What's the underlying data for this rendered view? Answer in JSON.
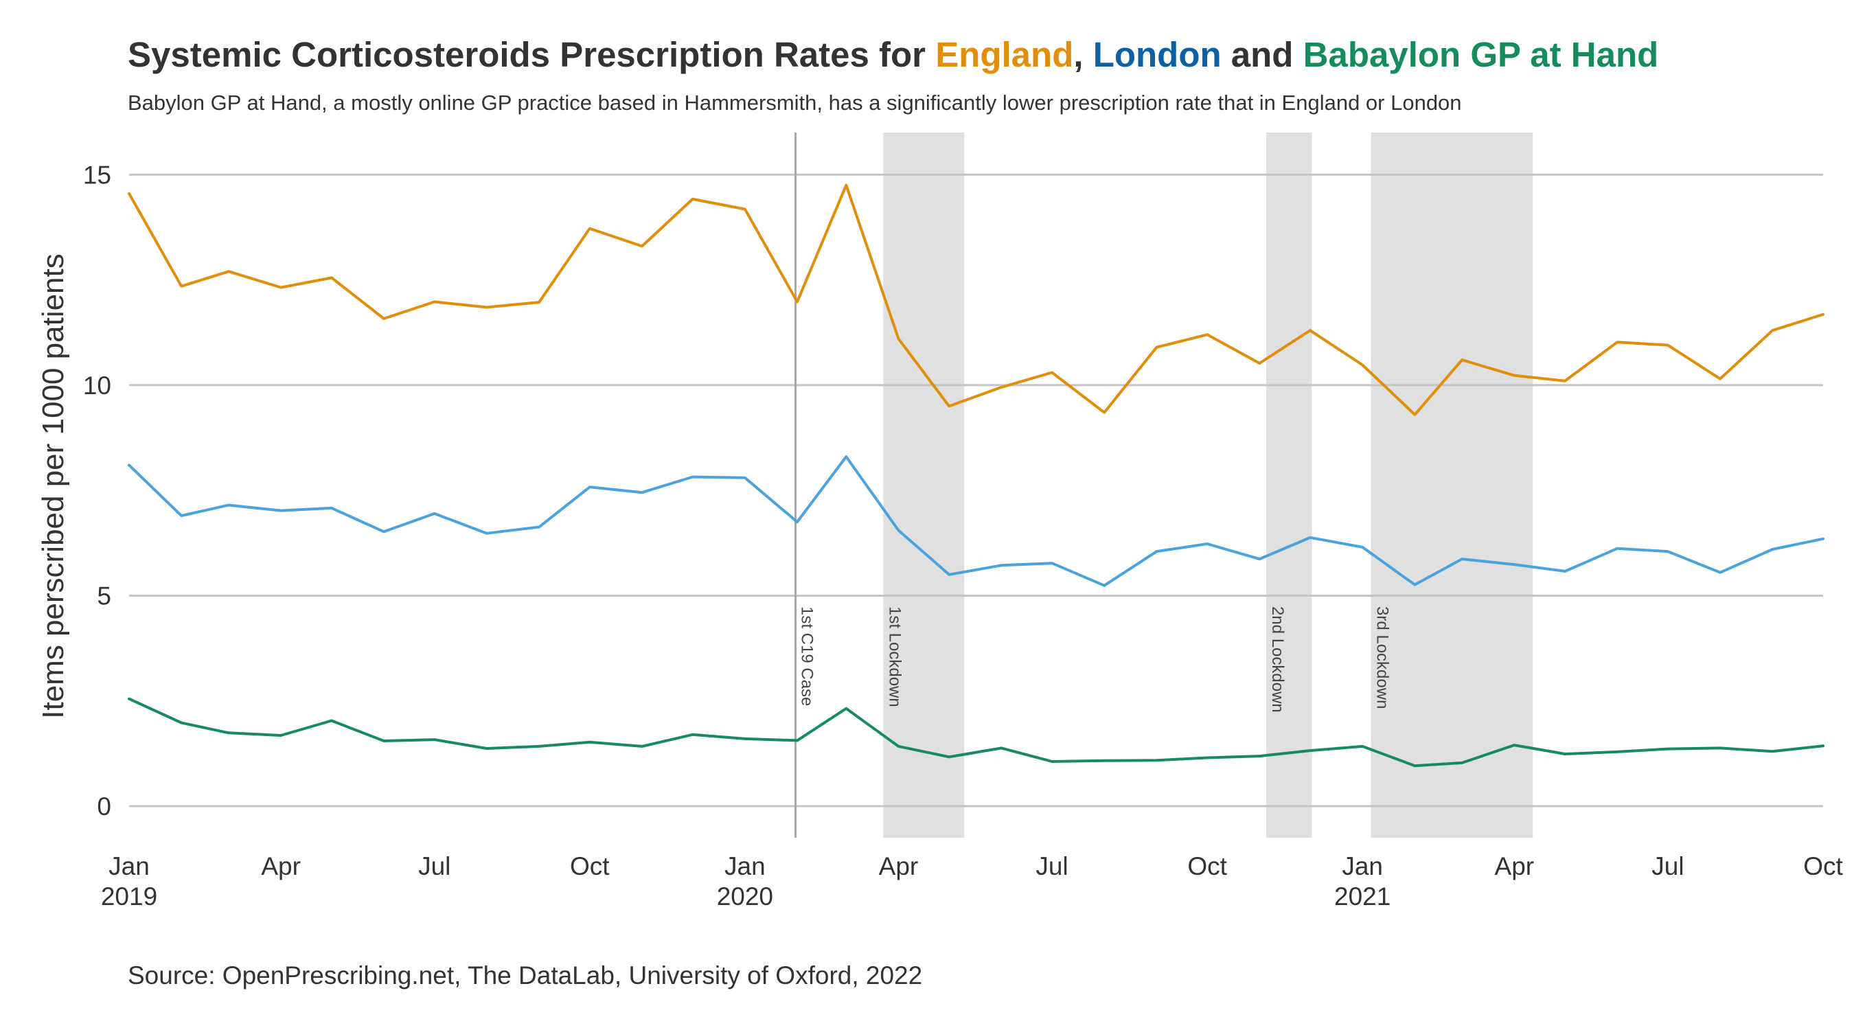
{
  "title": {
    "prefix": "Systemic Corticosteroids Prescription Rates for ",
    "england": "England",
    "comma": ", ",
    "london": "London",
    "and": " and ",
    "babylon": "Babaylon GP at Hand"
  },
  "subtitle": "Babylon GP at Hand, a mostly online GP practice based in Hammersmith, has a significantly lower prescription rate that in England or London",
  "source": "Source: OpenPrescribing.net, The DataLab, University of Oxford, 2022",
  "colors": {
    "england": "#E08E0B",
    "london": "#0E60A4",
    "babylon": "#168C5E",
    "london_line": "#4BA3DE",
    "grid": "#C4C4C4",
    "shade": "#E0E0E0",
    "marker": "#A8A8A8"
  },
  "chart_data": {
    "type": "line",
    "ylabel": "Items perscribed per 1000 patients",
    "xlabel": "",
    "ylim": [
      -0.75,
      16
    ],
    "yticks": [
      0,
      5,
      10,
      15
    ],
    "grid": true,
    "x_start": "2019-01",
    "x_end": "2021-10",
    "x": [
      "2019-01",
      "2019-02",
      "2019-03",
      "2019-04",
      "2019-05",
      "2019-06",
      "2019-07",
      "2019-08",
      "2019-09",
      "2019-10",
      "2019-11",
      "2019-12",
      "2020-01",
      "2020-02",
      "2020-03",
      "2020-04",
      "2020-05",
      "2020-06",
      "2020-07",
      "2020-08",
      "2020-09",
      "2020-10",
      "2020-11",
      "2020-12",
      "2021-01",
      "2021-02",
      "2021-03",
      "2021-04",
      "2021-05",
      "2021-06",
      "2021-07",
      "2021-08",
      "2021-09",
      "2021-10"
    ],
    "xticks": [
      {
        "date": "2019-01",
        "label": "Jan",
        "year": "2019"
      },
      {
        "date": "2019-04",
        "label": "Apr",
        "year": ""
      },
      {
        "date": "2019-07",
        "label": "Jul",
        "year": ""
      },
      {
        "date": "2019-10",
        "label": "Oct",
        "year": ""
      },
      {
        "date": "2020-01",
        "label": "Jan",
        "year": "2020"
      },
      {
        "date": "2020-04",
        "label": "Apr",
        "year": ""
      },
      {
        "date": "2020-07",
        "label": "Jul",
        "year": ""
      },
      {
        "date": "2020-10",
        "label": "Oct",
        "year": ""
      },
      {
        "date": "2021-01",
        "label": "Jan",
        "year": "2021"
      },
      {
        "date": "2021-04",
        "label": "Apr",
        "year": ""
      },
      {
        "date": "2021-07",
        "label": "Jul",
        "year": ""
      },
      {
        "date": "2021-10",
        "label": "Oct",
        "year": ""
      }
    ],
    "series": [
      {
        "name": "England",
        "color": "#E08E0B",
        "values": [
          14.55,
          12.35,
          12.7,
          12.32,
          12.55,
          11.58,
          11.98,
          11.85,
          11.97,
          13.72,
          13.3,
          14.42,
          14.18,
          11.98,
          14.75,
          11.1,
          9.5,
          9.95,
          10.3,
          9.35,
          10.9,
          11.2,
          10.52,
          11.3,
          10.48,
          9.3,
          10.6,
          10.23,
          10.1,
          11.02,
          10.95,
          10.15,
          11.3,
          11.68
        ]
      },
      {
        "name": "London",
        "color": "#4BA3DE",
        "values": [
          8.1,
          6.9,
          7.15,
          7.02,
          7.08,
          6.52,
          6.95,
          6.48,
          6.63,
          7.58,
          7.45,
          7.82,
          7.8,
          6.75,
          8.3,
          6.55,
          5.5,
          5.72,
          5.77,
          5.24,
          6.05,
          6.23,
          5.87,
          6.38,
          6.15,
          5.26,
          5.87,
          5.74,
          5.58,
          6.12,
          6.05,
          5.55,
          6.1,
          6.35
        ]
      },
      {
        "name": "Babaylon GP at Hand",
        "color": "#168C5E",
        "values": [
          2.55,
          1.98,
          1.74,
          1.68,
          2.03,
          1.55,
          1.58,
          1.37,
          1.42,
          1.52,
          1.42,
          1.7,
          1.6,
          1.56,
          2.32,
          1.42,
          1.17,
          1.38,
          1.06,
          1.08,
          1.09,
          1.15,
          1.19,
          1.32,
          1.42,
          0.96,
          1.03,
          1.45,
          1.24,
          1.29,
          1.36,
          1.38,
          1.3,
          1.43
        ]
      }
    ],
    "events": [
      {
        "label": "1st C19 Case",
        "date": "2020-01-31",
        "kind": "line"
      },
      {
        "label": "1st Lockdown",
        "start": "2020-03-23",
        "end": "2020-05-10",
        "kind": "band"
      },
      {
        "label": "2nd Lockdown",
        "start": "2020-11-05",
        "end": "2020-12-02",
        "kind": "band"
      },
      {
        "label": "3rd Lockdown",
        "start": "2021-01-06",
        "end": "2021-04-12",
        "kind": "band"
      }
    ]
  }
}
